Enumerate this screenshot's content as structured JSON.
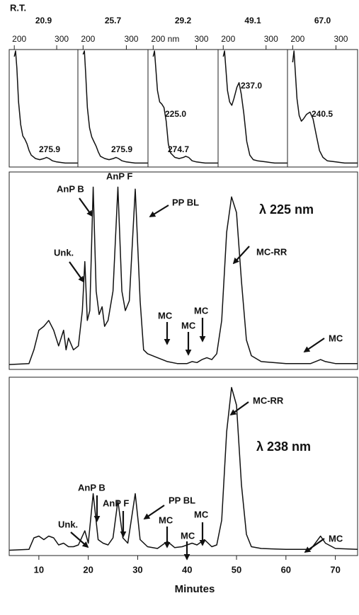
{
  "header": "R.T.",
  "chart_data": [
    {
      "type": "line",
      "title": "20.9",
      "color": "#111",
      "xlim": [
        188,
        350
      ],
      "ylim": [
        0,
        100
      ],
      "xticks": [
        200,
        300
      ],
      "x": [
        200,
        203,
        206,
        210,
        215,
        220,
        225,
        230,
        235,
        240,
        250,
        260,
        270,
        276,
        282,
        290,
        300,
        320,
        340,
        350
      ],
      "values": [
        95,
        100,
        85,
        55,
        35,
        25,
        22,
        18,
        12,
        8,
        5,
        4,
        5,
        6,
        5,
        3,
        2,
        1,
        1,
        1
      ],
      "annotations": [
        "275.9"
      ]
    },
    {
      "type": "line",
      "title": "25.7",
      "color": "#111",
      "xlim": [
        188,
        350
      ],
      "ylim": [
        0,
        100
      ],
      "xticks": [
        200,
        300
      ],
      "x": [
        200,
        203,
        206,
        210,
        215,
        220,
        225,
        230,
        235,
        240,
        250,
        260,
        270,
        276,
        282,
        290,
        300,
        320,
        340,
        350
      ],
      "values": [
        97,
        100,
        80,
        50,
        32,
        24,
        20,
        16,
        11,
        7,
        5,
        4,
        5,
        6,
        5,
        3,
        2,
        1,
        1,
        1
      ],
      "annotations": [
        "275.9"
      ]
    },
    {
      "type": "line",
      "title": "29.2",
      "color": "#111",
      "xlim": [
        188,
        350
      ],
      "ylim": [
        0,
        100
      ],
      "xticks": [
        {
          "value": 200,
          "label": "200 nm"
        },
        300
      ],
      "x": [
        200,
        203,
        206,
        210,
        215,
        220,
        225,
        230,
        235,
        240,
        250,
        260,
        270,
        275,
        282,
        290,
        300,
        320,
        340,
        350
      ],
      "values": [
        95,
        100,
        85,
        65,
        55,
        53,
        50,
        38,
        18,
        10,
        6,
        5,
        6,
        7,
        6,
        3,
        2,
        1,
        1,
        1
      ],
      "annotations": [
        "225.0",
        "274.7"
      ]
    },
    {
      "type": "line",
      "title": "49.1",
      "color": "#111",
      "xlim": [
        188,
        350
      ],
      "ylim": [
        0,
        100
      ],
      "xticks": [
        200,
        300
      ],
      "x": [
        200,
        203,
        206,
        210,
        215,
        220,
        225,
        232,
        237,
        242,
        248,
        255,
        262,
        270,
        280,
        300,
        320,
        350
      ],
      "values": [
        95,
        100,
        85,
        65,
        55,
        52,
        58,
        68,
        72,
        62,
        45,
        20,
        8,
        4,
        3,
        2,
        1,
        1
      ],
      "annotations": [
        "237.0"
      ]
    },
    {
      "type": "line",
      "title": "67.0",
      "color": "#111",
      "xlim": [
        188,
        350
      ],
      "ylim": [
        0,
        100
      ],
      "xticks": [
        200,
        300
      ],
      "x": [
        200,
        203,
        206,
        210,
        215,
        220,
        225,
        232,
        240,
        247,
        255,
        262,
        270,
        280,
        300,
        320,
        350
      ],
      "values": [
        90,
        100,
        82,
        58,
        43,
        38,
        40,
        44,
        46,
        40,
        25,
        12,
        6,
        3,
        2,
        1,
        1
      ],
      "annotations": [
        "240.5"
      ]
    },
    {
      "type": "line",
      "color": "#111",
      "xlim": [
        4,
        74.5
      ],
      "ylim": [
        0,
        100
      ],
      "x": [
        4,
        8,
        9,
        10,
        11,
        12,
        13,
        14,
        15,
        15.5,
        16,
        17,
        18,
        18.8,
        19.3,
        19.8,
        20.3,
        21,
        21.6,
        22.2,
        22.8,
        23.3,
        24,
        25,
        26,
        26.8,
        27.5,
        28.3,
        29.5,
        30.5,
        31.2,
        32,
        34,
        36,
        38,
        40,
        41,
        42,
        43,
        44,
        45,
        46,
        47,
        48,
        49,
        50,
        51,
        52,
        53,
        55,
        60,
        65,
        67,
        68,
        70,
        74.5
      ],
      "values": [
        2.5,
        3,
        10,
        20,
        22,
        25,
        20,
        12,
        20,
        10,
        16,
        10,
        12,
        30,
        55,
        25,
        30,
        93,
        40,
        28,
        32,
        22,
        25,
        40,
        93,
        40,
        30,
        35,
        92,
        35,
        10,
        8,
        6,
        4,
        3,
        3,
        4,
        3.5,
        5,
        6,
        5,
        8,
        25,
        70,
        88,
        80,
        45,
        15,
        7,
        4,
        3,
        3,
        5,
        4,
        3,
        3
      ],
      "annotations": [
        "AnP B",
        "AnP F",
        "PP BL",
        "Unk.",
        "MC-RR",
        "MC",
        "MC",
        "MC",
        "MC",
        "λ 225 nm"
      ]
    },
    {
      "type": "line",
      "color": "#111",
      "xlim": [
        4,
        74.5
      ],
      "ylim": [
        0,
        100
      ],
      "xticks": [
        10,
        20,
        30,
        40,
        50,
        60,
        70
      ],
      "xlabel": "Minutes",
      "x": [
        4,
        8,
        9,
        10,
        11,
        12,
        13,
        14,
        15,
        16,
        17,
        18,
        19.3,
        20,
        21,
        22,
        23,
        24,
        25,
        26,
        27,
        28,
        29.5,
        30.5,
        32,
        34,
        36,
        37.5,
        39,
        41,
        42,
        43.5,
        45,
        46,
        47,
        48,
        49,
        50,
        51,
        52,
        53,
        55,
        60,
        65,
        67,
        68,
        70,
        74.5
      ],
      "values": [
        3,
        3.5,
        10,
        11,
        9,
        11,
        10,
        6,
        7,
        5,
        5,
        6,
        14,
        7,
        35,
        9,
        7,
        6,
        10,
        31,
        10,
        7,
        35,
        9,
        5,
        4,
        8,
        4.5,
        5,
        7,
        6,
        9,
        5,
        6,
        20,
        70,
        95,
        85,
        40,
        12,
        5,
        4,
        3.5,
        3.5,
        11,
        7,
        4,
        3.5
      ],
      "annotations": [
        "MC-RR",
        "λ 238 nm",
        "AnP B",
        "AnP F",
        "PP BL",
        "Unk.",
        "MC",
        "MC",
        "MC",
        "MC"
      ]
    }
  ]
}
